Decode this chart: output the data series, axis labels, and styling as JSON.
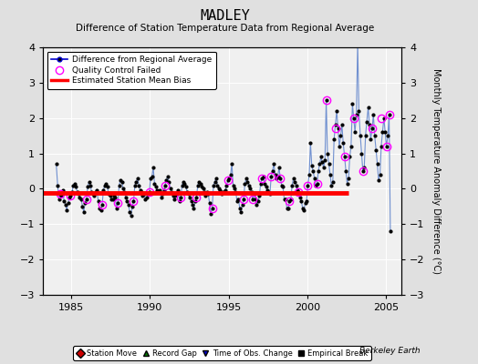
{
  "title": "MADLEY",
  "subtitle": "Difference of Station Temperature Data from Regional Average",
  "ylabel": "Monthly Temperature Anomaly Difference (°C)",
  "xlim": [
    1983.2,
    2006.0
  ],
  "ylim": [
    -3,
    4
  ],
  "yticks": [
    -3,
    -2,
    -1,
    0,
    1,
    2,
    3,
    4
  ],
  "xticks": [
    1985,
    1990,
    1995,
    2000,
    2005
  ],
  "background_color": "#e0e0e0",
  "plot_bg_color": "#f0f0f0",
  "grid_color": "#ffffff",
  "line_color": "#7090d0",
  "marker_color": "#000000",
  "bias_color": "#ff0000",
  "bias_start": 1983.2,
  "bias_end": 2002.6,
  "bias_value": -0.13,
  "watermark": "Berkeley Earth",
  "data_x": [
    1984.04,
    1984.13,
    1984.21,
    1984.29,
    1984.38,
    1984.46,
    1984.54,
    1984.63,
    1984.71,
    1984.79,
    1984.88,
    1984.96,
    1985.04,
    1985.13,
    1985.21,
    1985.29,
    1985.38,
    1985.46,
    1985.54,
    1985.63,
    1985.71,
    1985.79,
    1985.88,
    1985.96,
    1986.04,
    1986.13,
    1986.21,
    1986.29,
    1986.38,
    1986.46,
    1986.54,
    1986.63,
    1986.71,
    1986.79,
    1986.88,
    1986.96,
    1987.04,
    1987.13,
    1987.21,
    1987.29,
    1987.38,
    1987.46,
    1987.54,
    1987.63,
    1987.71,
    1987.79,
    1987.88,
    1987.96,
    1988.04,
    1988.13,
    1988.21,
    1988.29,
    1988.38,
    1988.46,
    1988.54,
    1988.63,
    1988.71,
    1988.79,
    1988.88,
    1988.96,
    1989.04,
    1989.13,
    1989.21,
    1989.29,
    1989.38,
    1989.46,
    1989.54,
    1989.63,
    1989.71,
    1989.79,
    1989.88,
    1989.96,
    1990.04,
    1990.13,
    1990.21,
    1990.29,
    1990.38,
    1990.46,
    1990.54,
    1990.63,
    1990.71,
    1990.79,
    1990.88,
    1990.96,
    1991.04,
    1991.13,
    1991.21,
    1991.29,
    1991.38,
    1991.46,
    1991.54,
    1991.63,
    1991.71,
    1991.79,
    1991.88,
    1991.96,
    1992.04,
    1992.13,
    1992.21,
    1992.29,
    1992.38,
    1992.46,
    1992.54,
    1992.63,
    1992.71,
    1992.79,
    1992.88,
    1992.96,
    1993.04,
    1993.13,
    1993.21,
    1993.29,
    1993.38,
    1993.46,
    1993.54,
    1993.63,
    1993.71,
    1993.79,
    1993.88,
    1993.96,
    1994.04,
    1994.13,
    1994.21,
    1994.29,
    1994.38,
    1994.46,
    1994.54,
    1994.63,
    1994.71,
    1994.79,
    1994.88,
    1994.96,
    1995.04,
    1995.13,
    1995.21,
    1995.29,
    1995.38,
    1995.46,
    1995.54,
    1995.63,
    1995.71,
    1995.79,
    1995.88,
    1995.96,
    1996.04,
    1996.13,
    1996.21,
    1996.29,
    1996.38,
    1996.46,
    1996.54,
    1996.63,
    1996.71,
    1996.79,
    1996.88,
    1996.96,
    1997.04,
    1997.13,
    1997.21,
    1997.29,
    1997.38,
    1997.46,
    1997.54,
    1997.63,
    1997.71,
    1997.79,
    1997.88,
    1997.96,
    1998.04,
    1998.13,
    1998.21,
    1998.29,
    1998.38,
    1998.46,
    1998.54,
    1998.63,
    1998.71,
    1998.79,
    1998.88,
    1998.96,
    1999.04,
    1999.13,
    1999.21,
    1999.29,
    1999.38,
    1999.46,
    1999.54,
    1999.63,
    1999.71,
    1999.79,
    1999.88,
    1999.96,
    2000.04,
    2000.13,
    2000.21,
    2000.29,
    2000.38,
    2000.46,
    2000.54,
    2000.63,
    2000.71,
    2000.79,
    2000.88,
    2000.96,
    2001.04,
    2001.13,
    2001.21,
    2001.29,
    2001.38,
    2001.46,
    2001.54,
    2001.63,
    2001.71,
    2001.79,
    2001.88,
    2001.96,
    2002.04,
    2002.13,
    2002.21,
    2002.29,
    2002.38,
    2002.46,
    2002.54,
    2002.63,
    2002.71,
    2002.79,
    2002.88,
    2002.96,
    2003.04,
    2003.13,
    2003.21,
    2003.29,
    2003.38,
    2003.46,
    2003.54,
    2003.63,
    2003.71,
    2003.79,
    2003.88,
    2003.96,
    2004.04,
    2004.13,
    2004.21,
    2004.29,
    2004.38,
    2004.46,
    2004.54,
    2004.63,
    2004.71,
    2004.79,
    2004.88,
    2004.96,
    2005.04,
    2005.13,
    2005.21,
    2005.29
  ],
  "data_y": [
    0.7,
    0.1,
    -0.3,
    -0.15,
    -0.2,
    -0.05,
    -0.35,
    -0.45,
    -0.6,
    -0.4,
    -0.25,
    -0.2,
    -0.1,
    0.1,
    0.15,
    0.05,
    -0.1,
    -0.15,
    -0.25,
    -0.3,
    -0.5,
    -0.65,
    -0.4,
    -0.3,
    0.05,
    0.2,
    0.1,
    -0.1,
    -0.15,
    -0.2,
    -0.1,
    -0.05,
    -0.35,
    -0.55,
    -0.6,
    -0.45,
    -0.05,
    0.1,
    0.15,
    0.05,
    -0.15,
    -0.2,
    -0.3,
    -0.3,
    -0.2,
    -0.25,
    -0.55,
    -0.4,
    0.1,
    0.25,
    0.2,
    0.0,
    -0.1,
    -0.25,
    -0.35,
    -0.45,
    -0.65,
    -0.75,
    -0.5,
    -0.35,
    0.1,
    0.2,
    0.3,
    0.1,
    -0.05,
    -0.1,
    -0.2,
    -0.15,
    -0.3,
    -0.25,
    -0.15,
    -0.1,
    0.3,
    0.35,
    0.6,
    0.15,
    0.05,
    -0.05,
    -0.1,
    -0.05,
    -0.25,
    -0.15,
    -0.05,
    0.1,
    0.25,
    0.35,
    0.2,
    0.0,
    -0.1,
    -0.2,
    -0.3,
    -0.2,
    -0.15,
    -0.05,
    -0.35,
    -0.25,
    0.1,
    0.2,
    0.15,
    0.05,
    -0.1,
    -0.15,
    -0.25,
    -0.35,
    -0.45,
    -0.55,
    -0.35,
    -0.25,
    0.1,
    0.2,
    0.15,
    0.05,
    0.0,
    -0.1,
    -0.2,
    -0.1,
    -0.15,
    -0.4,
    -0.7,
    -0.55,
    0.1,
    0.2,
    0.3,
    0.1,
    0.0,
    -0.05,
    -0.15,
    -0.1,
    -0.1,
    -0.05,
    0.1,
    0.25,
    0.3,
    0.4,
    0.7,
    0.1,
    0.0,
    -0.1,
    -0.35,
    -0.3,
    -0.55,
    -0.65,
    -0.45,
    -0.3,
    0.15,
    0.3,
    0.2,
    0.1,
    0.0,
    -0.1,
    -0.3,
    -0.15,
    -0.3,
    -0.45,
    -0.35,
    -0.2,
    0.15,
    0.3,
    0.35,
    0.15,
    0.05,
    -0.05,
    -0.1,
    -0.15,
    0.35,
    0.5,
    0.7,
    0.4,
    0.3,
    0.35,
    0.6,
    0.3,
    0.1,
    0.05,
    -0.3,
    -0.3,
    -0.55,
    -0.55,
    -0.35,
    -0.3,
    0.1,
    0.3,
    0.2,
    0.1,
    -0.05,
    -0.1,
    -0.25,
    -0.35,
    -0.55,
    -0.6,
    -0.4,
    -0.35,
    0.1,
    0.4,
    1.3,
    0.65,
    0.5,
    0.3,
    0.1,
    0.15,
    0.5,
    0.7,
    0.9,
    0.75,
    0.6,
    0.8,
    2.5,
    1.0,
    0.7,
    0.4,
    0.1,
    0.2,
    1.4,
    1.8,
    2.2,
    1.7,
    1.2,
    1.5,
    1.8,
    1.3,
    0.9,
    0.5,
    0.15,
    0.3,
    0.9,
    1.2,
    2.4,
    2.0,
    1.6,
    2.1,
    4.1,
    2.2,
    1.5,
    1.0,
    0.5,
    0.6,
    1.5,
    1.9,
    2.3,
    1.8,
    1.4,
    1.7,
    2.1,
    1.5,
    1.1,
    0.7,
    0.25,
    0.4,
    1.2,
    1.6,
    2.0,
    1.6,
    1.2,
    1.5,
    2.1,
    -1.2
  ],
  "qc_x": [
    1984.29,
    1984.96,
    1985.96,
    1986.96,
    1987.96,
    1988.96,
    1989.96,
    1990.96,
    1991.96,
    1992.96,
    1993.96,
    1994.96,
    1995.96,
    1996.54,
    1997.13,
    1997.71,
    1998.29,
    1998.88,
    1999.46,
    2000.04,
    2000.63,
    2001.21,
    2001.79,
    2002.38,
    2002.96,
    2003.54,
    2004.13,
    2004.71,
    2005.04,
    2005.21
  ],
  "qc_y": [
    -0.15,
    -0.2,
    -0.3,
    -0.45,
    -0.4,
    -0.35,
    -0.1,
    0.1,
    -0.25,
    -0.25,
    -0.55,
    0.25,
    -0.3,
    -0.3,
    0.3,
    0.35,
    0.3,
    -0.35,
    -0.1,
    0.1,
    0.15,
    2.5,
    1.7,
    0.9,
    2.0,
    0.5,
    1.7,
    2.0,
    1.2,
    2.1
  ]
}
